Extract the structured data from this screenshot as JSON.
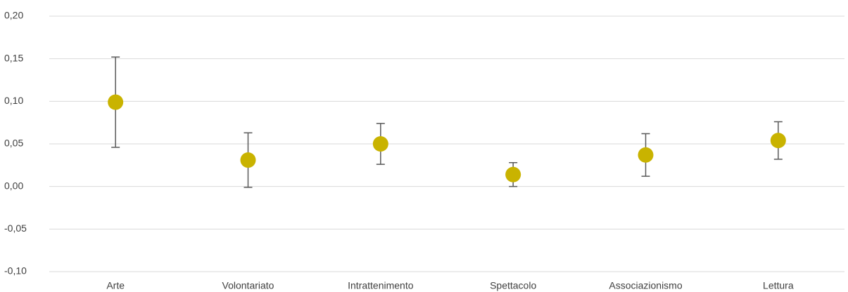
{
  "chart_data": {
    "type": "errorbar-dot",
    "categories": [
      "Arte",
      "Volontariato",
      "Intrattenimento",
      "Spettacolo",
      "Associazionismo",
      "Lettura"
    ],
    "values": [
      0.099,
      0.031,
      0.05,
      0.014,
      0.037,
      0.054
    ],
    "errors": [
      0.053,
      0.032,
      0.024,
      0.014,
      0.025,
      0.022
    ],
    "color": "#c9b300",
    "error_color": "#595959",
    "ylim": [
      -0.1,
      0.2
    ],
    "yticks": [
      {
        "value": -0.1,
        "label": "-0,10"
      },
      {
        "value": -0.05,
        "label": "-0,05"
      },
      {
        "value": 0,
        "label": "0,00"
      },
      {
        "value": 0.05,
        "label": "0,05"
      },
      {
        "value": 0.1,
        "label": "0,10"
      },
      {
        "value": 0.15,
        "label": "0,15"
      },
      {
        "value": 0.2,
        "label": "0,20"
      }
    ],
    "grid": true
  }
}
